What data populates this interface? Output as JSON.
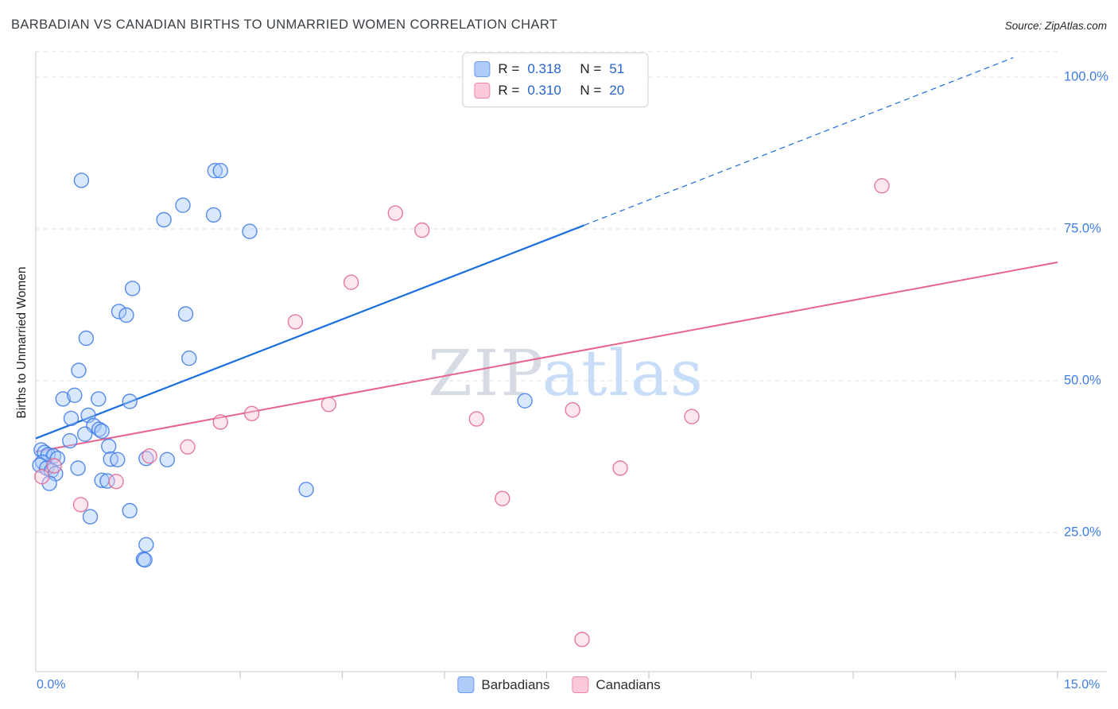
{
  "header": {
    "title": "BARBADIAN VS CANADIAN BIRTHS TO UNMARRIED WOMEN CORRELATION CHART",
    "source": "Source: ZipAtlas.com"
  },
  "axes": {
    "y_label": "Births to Unmarried Women",
    "y_tick_labels": [
      "100.0%",
      "75.0%",
      "50.0%",
      "25.0%"
    ],
    "x_min_label": "0.0%",
    "x_max_label": "15.0%"
  },
  "legend_box": {
    "rows": [
      {
        "r_label": "R =",
        "r_value": "0.318",
        "n_label": "N =",
        "n_value": "51"
      },
      {
        "r_label": "R =",
        "r_value": "0.310",
        "n_label": "N =",
        "n_value": "20"
      }
    ]
  },
  "bottom_legend": {
    "items": [
      {
        "label": "Barbadians"
      },
      {
        "label": "Canadians"
      }
    ]
  },
  "watermark": {
    "zip": "ZIP",
    "atlas": "atlas"
  },
  "colors": {
    "blue_fill": "#A8C7FA",
    "blue_stroke": "#3B78E7",
    "blue_line": "#1B6EDC",
    "pink_fill": "#F9C6D8",
    "pink_stroke": "#E0648C",
    "pink_line": "#E8638E",
    "axis": "#c9c9c9",
    "grid": "#dcdfe3",
    "tick_label": "#3d7de4"
  },
  "chart_data": {
    "type": "scatter",
    "title": "Barbadian vs Canadian Births to Unmarried Women Correlation Chart",
    "xlabel": "",
    "ylabel": "Births to Unmarried Women",
    "x_unit": "%",
    "y_unit": "%",
    "xlim": [
      0,
      15
    ],
    "ylim": [
      0,
      105
    ],
    "grid": "horizontal-dashed",
    "y_gridlines": [
      100,
      75,
      50,
      25
    ],
    "x_ticks": [
      1.5,
      3,
      4.5,
      6,
      7.5,
      9,
      10.5,
      12,
      13.5,
      15
    ],
    "series": [
      {
        "name": "Barbadians",
        "R": 0.318,
        "N": 51,
        "fill": "#A8C7FA",
        "stroke": "#3B78E7",
        "point_name": "barbadian-point",
        "points": [
          [
            0.67,
            83.0
          ],
          [
            2.63,
            84.6
          ],
          [
            2.71,
            84.6
          ],
          [
            2.16,
            78.9
          ],
          [
            1.88,
            76.5
          ],
          [
            2.61,
            77.3
          ],
          [
            3.14,
            74.6
          ],
          [
            1.42,
            65.2
          ],
          [
            1.22,
            61.4
          ],
          [
            1.33,
            60.8
          ],
          [
            2.2,
            61.0
          ],
          [
            0.74,
            57.0
          ],
          [
            2.25,
            53.7
          ],
          [
            0.63,
            51.7
          ],
          [
            0.4,
            47.0
          ],
          [
            0.57,
            47.6
          ],
          [
            0.92,
            47.0
          ],
          [
            1.38,
            46.6
          ],
          [
            0.77,
            44.3
          ],
          [
            0.52,
            43.8
          ],
          [
            0.85,
            42.6
          ],
          [
            0.93,
            42.0
          ],
          [
            0.97,
            41.7
          ],
          [
            0.72,
            41.2
          ],
          [
            0.5,
            40.1
          ],
          [
            1.07,
            39.2
          ],
          [
            0.08,
            38.6
          ],
          [
            0.13,
            38.2
          ],
          [
            0.18,
            37.8
          ],
          [
            0.26,
            37.6
          ],
          [
            0.32,
            37.2
          ],
          [
            0.1,
            36.6
          ],
          [
            0.06,
            36.1
          ],
          [
            0.16,
            35.6
          ],
          [
            0.23,
            35.2
          ],
          [
            0.29,
            34.7
          ],
          [
            0.62,
            35.6
          ],
          [
            0.2,
            33.1
          ],
          [
            1.1,
            37.1
          ],
          [
            1.2,
            37.0
          ],
          [
            1.62,
            37.2
          ],
          [
            0.97,
            33.6
          ],
          [
            1.05,
            33.5
          ],
          [
            1.93,
            37.0
          ],
          [
            7.18,
            46.7
          ],
          [
            3.97,
            32.1
          ],
          [
            1.38,
            28.6
          ],
          [
            0.8,
            27.6
          ],
          [
            1.62,
            23.0
          ],
          [
            1.58,
            20.6
          ],
          [
            1.6,
            20.5
          ]
        ]
      },
      {
        "name": "Canadians",
        "R": 0.31,
        "N": 20,
        "fill": "#F9C6D8",
        "stroke": "#E0648C",
        "point_name": "canadian-point",
        "points": [
          [
            5.28,
            77.6
          ],
          [
            5.67,
            74.8
          ],
          [
            12.42,
            82.1
          ],
          [
            4.63,
            66.2
          ],
          [
            3.81,
            59.7
          ],
          [
            4.3,
            46.1
          ],
          [
            3.17,
            44.6
          ],
          [
            2.71,
            43.2
          ],
          [
            6.47,
            43.7
          ],
          [
            7.88,
            45.2
          ],
          [
            9.63,
            44.1
          ],
          [
            2.23,
            39.1
          ],
          [
            1.67,
            37.6
          ],
          [
            0.27,
            36.0
          ],
          [
            0.09,
            34.2
          ],
          [
            1.18,
            33.4
          ],
          [
            0.66,
            29.6
          ],
          [
            6.85,
            30.6
          ],
          [
            8.58,
            35.6
          ],
          [
            8.02,
            7.4
          ]
        ]
      }
    ],
    "trend_lines": [
      {
        "series": "Barbadians",
        "x1": 0,
        "y1": 40.5,
        "x2": 8.05,
        "y2": 75.6,
        "style": "solid",
        "color": "#1B6EDC",
        "width": 2.2
      },
      {
        "series": "Barbadians-projection",
        "x1": 8.05,
        "y1": 75.6,
        "x2": 14.35,
        "y2": 103.2,
        "style": "dashed",
        "color": "#1B6EDC",
        "width": 1.2
      },
      {
        "series": "Canadians",
        "x1": 0,
        "y1": 38.3,
        "x2": 15,
        "y2": 69.5,
        "style": "solid",
        "color": "#E8638E",
        "width": 2
      }
    ]
  }
}
